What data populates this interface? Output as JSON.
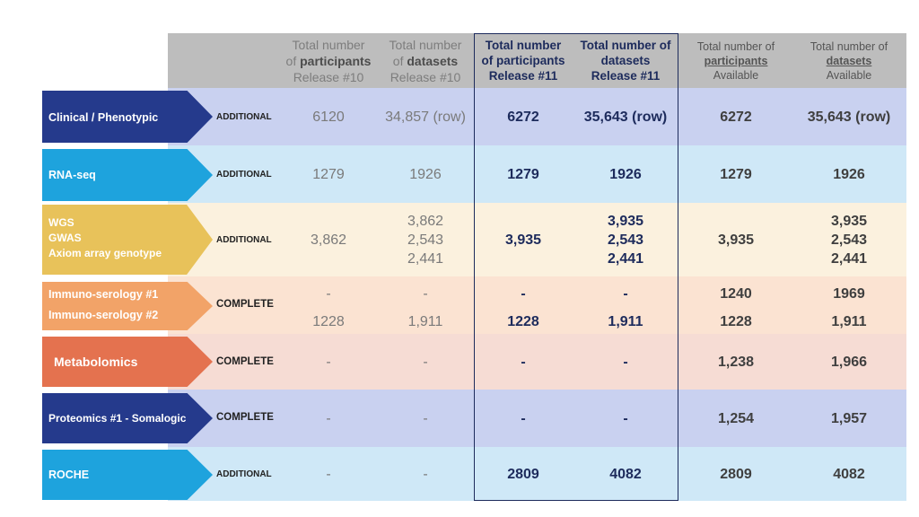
{
  "header": {
    "r10_participants": [
      "Total number",
      "of ",
      "participants",
      "Release #10"
    ],
    "r10_datasets": [
      "Total number",
      "of ",
      "datasets",
      "Release #10"
    ],
    "r11_participants": [
      "Total number",
      "of participants",
      "Release #11"
    ],
    "r11_datasets": [
      "Total number of",
      "datasets",
      "Release #11"
    ],
    "av_participants": [
      "Total number of",
      "participants",
      "Available"
    ],
    "av_datasets": [
      "Total number of",
      "datasets",
      "Available"
    ]
  },
  "rows": [
    {
      "label": "Clinical / Phenotypic",
      "status": "ADDITIONAL",
      "r10_p": "6120",
      "r10_d": "34,857 (row)",
      "r11_p": "6272",
      "r11_d": "35,643 (row)",
      "av_p": "6272",
      "av_d": "35,643 (row)"
    },
    {
      "label": "RNA-seq",
      "status": "ADDITIONAL",
      "r10_p": "1279",
      "r10_d": "1926",
      "r11_p": "1279",
      "r11_d": "1926",
      "av_p": "1279",
      "av_d": "1926"
    },
    {
      "label": "WGS\nGWAS\nAxiom array genotype",
      "status": "ADDITIONAL",
      "r10_p": "3,862",
      "r10_d": "3,862\n2,543\n2,441",
      "r11_p": "3,935",
      "r11_d": "3,935\n2,543\n2,441",
      "av_p": "3,935",
      "av_d": "3,935\n2,543\n2,441"
    },
    {
      "label_a": "Immuno-serology #1",
      "label_b": "Immuno-serology #2",
      "status": "COMPLETE",
      "a": {
        "r10_p": "-",
        "r10_d": "-",
        "r11_p": "-",
        "r11_d": "-",
        "av_p": "1240",
        "av_d": "1969"
      },
      "b": {
        "r10_p": "1228",
        "r10_d": "1,911",
        "r11_p": "1228",
        "r11_d": "1,911",
        "av_p": "1228",
        "av_d": "1,911"
      }
    },
    {
      "label": "Metabolomics",
      "status": "COMPLETE",
      "r10_p": "-",
      "r10_d": "-",
      "r11_p": "-",
      "r11_d": "-",
      "av_p": "1,238",
      "av_d": "1,966"
    },
    {
      "label": "Proteomics #1 - Somalogic",
      "status": "COMPLETE",
      "r10_p": "-",
      "r10_d": "-",
      "r11_p": "-",
      "r11_d": "-",
      "av_p": "1,254",
      "av_d": "1,957"
    },
    {
      "label": "ROCHE",
      "status": "ADDITIONAL",
      "r10_p": "-",
      "r10_d": "-",
      "r11_p": "2809",
      "r11_d": "4082",
      "av_p": "2809",
      "av_d": "4082"
    }
  ],
  "colors": {
    "header_bg": "#bdbdbd",
    "release11_box": "#1d2b5c",
    "row_bg": [
      "#c9d1f0",
      "#cfe8f7",
      "#fbf1de",
      "#fbe3d2",
      "#f6dcd4",
      "#c9d1f0",
      "#cfe8f7"
    ],
    "arrow": [
      "#253a8c",
      "#1ea3dd",
      "#e8c25a",
      "#f2a368",
      "#e4724f",
      "#253a8c",
      "#1ea3dd"
    ]
  }
}
